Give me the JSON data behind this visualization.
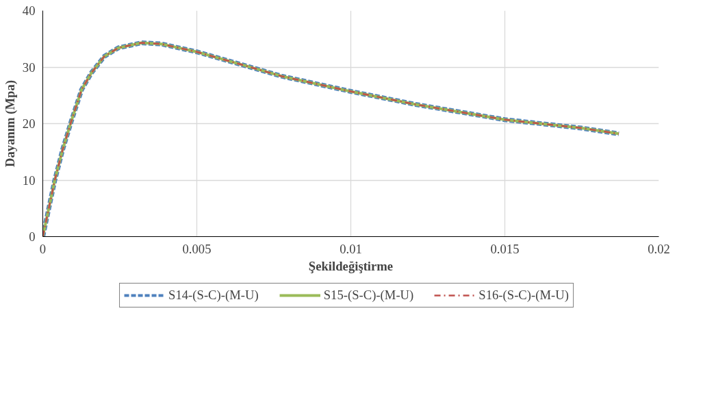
{
  "chart_data": {
    "type": "line",
    "xlabel": "Şekildeğiştirme",
    "ylabel": "Dayanım (Mpa)",
    "x": [
      0,
      0.00039,
      0.00065,
      0.00093,
      0.00126,
      0.00158,
      0.002,
      0.00245,
      0.0032,
      0.00385,
      0.005,
      0.00667,
      0.00775,
      0.01,
      0.0121,
      0.015,
      0.0175,
      0.0187
    ],
    "series": [
      {
        "name": "S14-(S-C)-(M-U)",
        "color": "#4f81bd",
        "line_style": "dashed",
        "values": [
          0,
          10,
          15.5,
          20.5,
          26,
          29,
          31.9,
          33.4,
          34.3,
          34.1,
          32.7,
          30.1,
          28.4,
          25.7,
          23.4,
          20.7,
          19.2,
          18.2
        ]
      },
      {
        "name": "S15-(S-C)-(M-U)",
        "color": "#9bbb59",
        "line_style": "solid",
        "values": [
          0,
          10,
          15.5,
          20.5,
          26,
          29,
          31.9,
          33.4,
          34.3,
          34.1,
          32.7,
          30.1,
          28.4,
          25.7,
          23.4,
          20.7,
          19.2,
          18.2
        ]
      },
      {
        "name": "S16-(S-C)-(M-U)",
        "color": "#c0504d",
        "line_style": "dashdot",
        "values": [
          0,
          10,
          15.5,
          20.5,
          26,
          29,
          31.9,
          33.4,
          34.3,
          34.1,
          32.7,
          30.1,
          28.4,
          25.7,
          23.4,
          20.7,
          19.2,
          18.2
        ]
      }
    ],
    "xlim": [
      0,
      0.02
    ],
    "xticks": [
      0,
      0.005,
      0.01,
      0.015,
      0.02
    ],
    "ylim": [
      0,
      40
    ],
    "yticks": [
      0,
      10,
      20,
      30,
      40
    ],
    "grid": true,
    "legend": "bottom",
    "marker": "none"
  }
}
